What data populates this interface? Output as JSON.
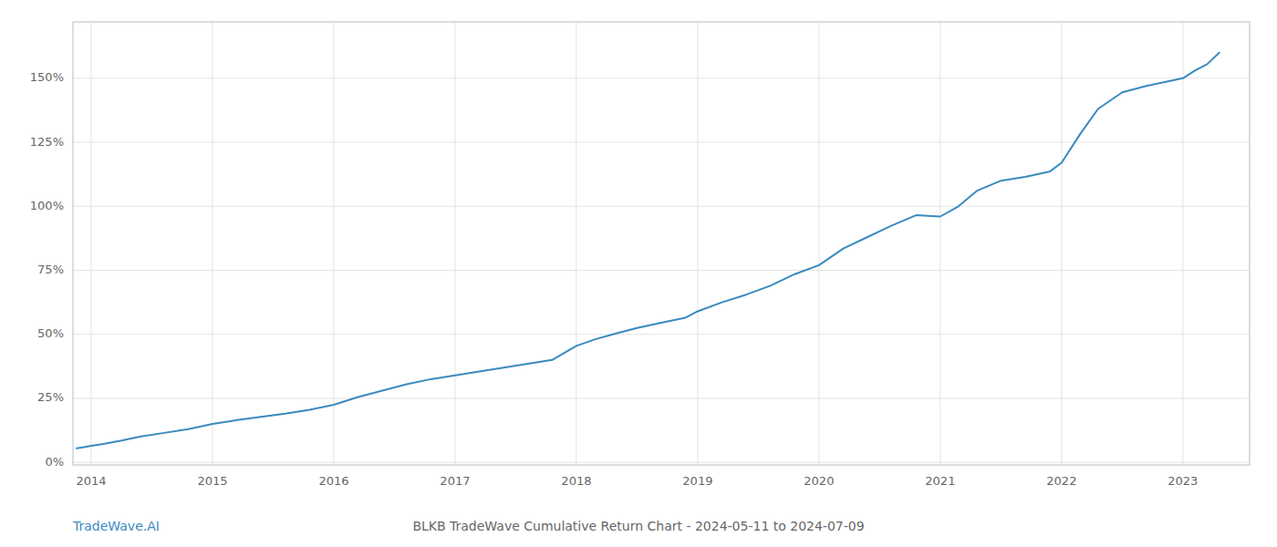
{
  "chart_data": {
    "type": "line",
    "title": "BLKB TradeWave Cumulative Return Chart - 2024-05-11 to 2024-07-09",
    "annotations": [
      "TradeWave.AI"
    ],
    "color": "#3a8abf",
    "grid": true,
    "xlim": [
      2013.85,
      2023.55
    ],
    "ylim": [
      -0.01,
      1.72
    ],
    "xticks": [
      2014,
      2015,
      2016,
      2017,
      2018,
      2019,
      2020,
      2021,
      2022,
      2023
    ],
    "yticks": [
      {
        "value": 0.0,
        "label": "0%"
      },
      {
        "value": 0.25,
        "label": "25%"
      },
      {
        "value": 0.5,
        "label": "50%"
      },
      {
        "value": 0.75,
        "label": "75%"
      },
      {
        "value": 1.0,
        "label": "100%"
      },
      {
        "value": 1.25,
        "label": "125%"
      },
      {
        "value": 1.5,
        "label": "150%"
      }
    ],
    "x": [
      2013.88,
      2013.95,
      2014.0,
      2014.1,
      2014.25,
      2014.4,
      2014.6,
      2014.8,
      2015.0,
      2015.2,
      2015.4,
      2015.6,
      2015.8,
      2016.0,
      2016.2,
      2016.4,
      2016.6,
      2016.8,
      2017.0,
      2017.2,
      2017.4,
      2017.6,
      2017.8,
      2018.0,
      2018.15,
      2018.3,
      2018.5,
      2018.7,
      2018.9,
      2019.0,
      2019.2,
      2019.4,
      2019.6,
      2019.8,
      2020.0,
      2020.2,
      2020.4,
      2020.6,
      2020.8,
      2021.0,
      2021.15,
      2021.3,
      2021.5,
      2021.7,
      2021.9,
      2022.0,
      2022.15,
      2022.3,
      2022.5,
      2022.7,
      2022.85,
      2023.0,
      2023.1,
      2023.2,
      2023.3
    ],
    "values": [
      0.055,
      0.06,
      0.065,
      0.072,
      0.085,
      0.1,
      0.115,
      0.13,
      0.15,
      0.165,
      0.178,
      0.19,
      0.205,
      0.225,
      0.255,
      0.28,
      0.305,
      0.325,
      0.34,
      0.355,
      0.37,
      0.385,
      0.4,
      0.455,
      0.48,
      0.5,
      0.525,
      0.545,
      0.565,
      0.59,
      0.625,
      0.655,
      0.69,
      0.735,
      0.77,
      0.835,
      0.88,
      0.925,
      0.965,
      0.96,
      1.0,
      1.06,
      1.1,
      1.115,
      1.135,
      1.17,
      1.28,
      1.38,
      1.445,
      1.47,
      1.485,
      1.5,
      1.53,
      1.555,
      1.6
    ]
  }
}
